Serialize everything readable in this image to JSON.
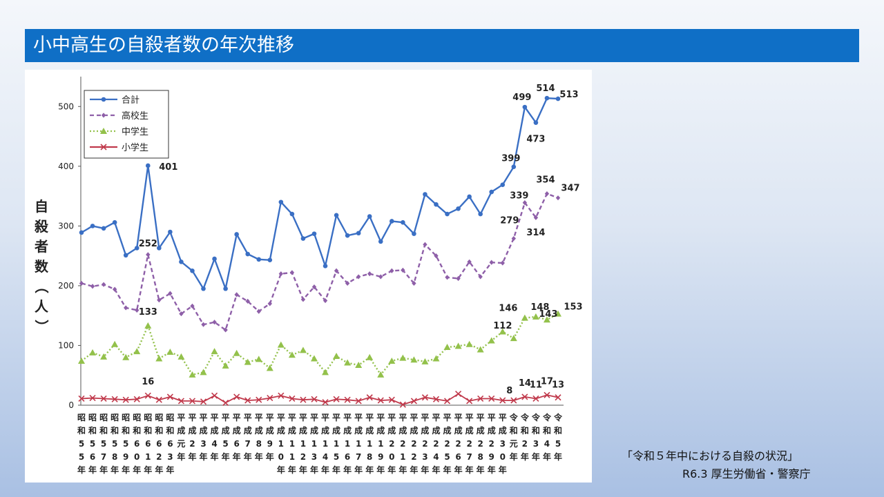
{
  "slide": {
    "title": "小中高生の自殺者数の年次推移",
    "source_line1": "「令和５年中における自殺の状況」",
    "source_line2": "R6.3 厚生労働省・警察庁"
  },
  "chart_data": {
    "type": "line",
    "ylabel": "自殺者数（人）",
    "ylim": [
      0,
      550
    ],
    "yticks": [
      0,
      100,
      200,
      300,
      400,
      500
    ],
    "grid": false,
    "legend_position": "top-left",
    "x": [
      [
        "昭",
        "和",
        "5",
        "5",
        "年"
      ],
      [
        "昭",
        "和",
        "5",
        "6",
        "年"
      ],
      [
        "昭",
        "和",
        "5",
        "7",
        "年"
      ],
      [
        "昭",
        "和",
        "5",
        "8",
        "年"
      ],
      [
        "昭",
        "和",
        "5",
        "9",
        "年"
      ],
      [
        "昭",
        "和",
        "6",
        "0",
        "年"
      ],
      [
        "昭",
        "和",
        "6",
        "1",
        "年"
      ],
      [
        "昭",
        "和",
        "6",
        "2",
        "年"
      ],
      [
        "昭",
        "和",
        "6",
        "3",
        "年"
      ],
      [
        "平",
        "成",
        "元",
        "年"
      ],
      [
        "平",
        "成",
        "2",
        "年"
      ],
      [
        "平",
        "成",
        "3",
        "年"
      ],
      [
        "平",
        "成",
        "4",
        "年"
      ],
      [
        "平",
        "成",
        "5",
        "年"
      ],
      [
        "平",
        "成",
        "6",
        "年"
      ],
      [
        "平",
        "成",
        "7",
        "年"
      ],
      [
        "平",
        "成",
        "8",
        "年"
      ],
      [
        "平",
        "成",
        "9",
        "年"
      ],
      [
        "平",
        "成",
        "1",
        "0",
        "年"
      ],
      [
        "平",
        "成",
        "1",
        "1",
        "年"
      ],
      [
        "平",
        "成",
        "1",
        "2",
        "年"
      ],
      [
        "平",
        "成",
        "1",
        "3",
        "年"
      ],
      [
        "平",
        "成",
        "1",
        "4",
        "年"
      ],
      [
        "平",
        "成",
        "1",
        "5",
        "年"
      ],
      [
        "平",
        "成",
        "1",
        "6",
        "年"
      ],
      [
        "平",
        "成",
        "1",
        "7",
        "年"
      ],
      [
        "平",
        "成",
        "1",
        "8",
        "年"
      ],
      [
        "平",
        "成",
        "1",
        "9",
        "年"
      ],
      [
        "平",
        "成",
        "2",
        "0",
        "年"
      ],
      [
        "平",
        "成",
        "2",
        "1",
        "年"
      ],
      [
        "平",
        "成",
        "2",
        "2",
        "年"
      ],
      [
        "平",
        "成",
        "2",
        "3",
        "年"
      ],
      [
        "平",
        "成",
        "2",
        "4",
        "年"
      ],
      [
        "平",
        "成",
        "2",
        "5",
        "年"
      ],
      [
        "平",
        "成",
        "2",
        "6",
        "年"
      ],
      [
        "平",
        "成",
        "2",
        "7",
        "年"
      ],
      [
        "平",
        "成",
        "2",
        "8",
        "年"
      ],
      [
        "平",
        "成",
        "2",
        "9",
        "年"
      ],
      [
        "平",
        "成",
        "3",
        "0",
        "年"
      ],
      [
        "令",
        "和",
        "元",
        "年"
      ],
      [
        "令",
        "和",
        "2",
        "年"
      ],
      [
        "令",
        "和",
        "3",
        "年"
      ],
      [
        "令",
        "和",
        "4",
        "年"
      ],
      [
        "令",
        "和",
        "5",
        "年"
      ]
    ],
    "series": [
      {
        "name": "合計",
        "color": "#3a6fc4",
        "dash": "",
        "marker": "circle",
        "values": [
          289,
          300,
          296,
          306,
          251,
          263,
          401,
          263,
          290,
          240,
          225,
          195,
          245,
          195,
          286,
          253,
          244,
          243,
          340,
          320,
          279,
          287,
          233,
          318,
          284,
          288,
          316,
          274,
          308,
          306,
          287,
          353,
          336,
          320,
          329,
          349,
          320,
          357,
          369,
          399,
          499,
          473,
          514,
          513
        ]
      },
      {
        "name": "高校生",
        "color": "#8e5fa8",
        "dash": "6,4",
        "marker": "diamond",
        "values": [
          204,
          199,
          202,
          194,
          163,
          159,
          252,
          176,
          187,
          153,
          166,
          135,
          139,
          126,
          185,
          174,
          157,
          170,
          220,
          222,
          177,
          198,
          175,
          225,
          204,
          215,
          220,
          215,
          225,
          226,
          204,
          269,
          250,
          214,
          212,
          240,
          215,
          239,
          238,
          279,
          339,
          314,
          354,
          347
        ]
      },
      {
        "name": "中学生",
        "color": "#93c14b",
        "dash": "2,3",
        "marker": "triangle",
        "values": [
          74,
          88,
          81,
          102,
          80,
          90,
          133,
          78,
          89,
          81,
          51,
          55,
          90,
          66,
          87,
          72,
          77,
          62,
          101,
          84,
          92,
          78,
          55,
          82,
          71,
          67,
          80,
          51,
          74,
          79,
          76,
          73,
          78,
          97,
          99,
          102,
          93,
          108,
          123,
          112,
          146,
          148,
          143,
          153
        ]
      },
      {
        "name": "小学生",
        "color": "#c0394b",
        "dash": "",
        "marker": "x",
        "values": [
          11,
          12,
          11,
          10,
          9,
          10,
          16,
          9,
          14,
          7,
          7,
          6,
          16,
          4,
          14,
          8,
          9,
          12,
          16,
          11,
          9,
          10,
          5,
          10,
          9,
          7,
          13,
          8,
          9,
          1,
          7,
          13,
          10,
          7,
          19,
          7,
          11,
          11,
          8,
          8,
          14,
          11,
          17,
          13
        ]
      }
    ],
    "labels": [
      {
        "series": 0,
        "index": 6,
        "text": "401"
      },
      {
        "series": 0,
        "index": 39,
        "text": "399"
      },
      {
        "series": 0,
        "index": 40,
        "text": "499"
      },
      {
        "series": 0,
        "index": 41,
        "text": "473"
      },
      {
        "series": 0,
        "index": 42,
        "text": "514"
      },
      {
        "series": 0,
        "index": 43,
        "text": "513"
      },
      {
        "series": 1,
        "index": 6,
        "text": "252"
      },
      {
        "series": 1,
        "index": 39,
        "text": "279"
      },
      {
        "series": 1,
        "index": 40,
        "text": "339"
      },
      {
        "series": 1,
        "index": 41,
        "text": "314"
      },
      {
        "series": 1,
        "index": 42,
        "text": "354"
      },
      {
        "series": 1,
        "index": 43,
        "text": "347"
      },
      {
        "series": 2,
        "index": 6,
        "text": "133"
      },
      {
        "series": 2,
        "index": 39,
        "text": "112"
      },
      {
        "series": 2,
        "index": 40,
        "text": "146"
      },
      {
        "series": 2,
        "index": 41,
        "text": "148"
      },
      {
        "series": 2,
        "index": 42,
        "text": "143"
      },
      {
        "series": 2,
        "index": 43,
        "text": "153"
      },
      {
        "series": 3,
        "index": 6,
        "text": "16"
      },
      {
        "series": 3,
        "index": 39,
        "text": "8"
      },
      {
        "series": 3,
        "index": 40,
        "text": "14"
      },
      {
        "series": 3,
        "index": 41,
        "text": "11"
      },
      {
        "series": 3,
        "index": 42,
        "text": "17"
      },
      {
        "series": 3,
        "index": 43,
        "text": "13"
      }
    ]
  }
}
